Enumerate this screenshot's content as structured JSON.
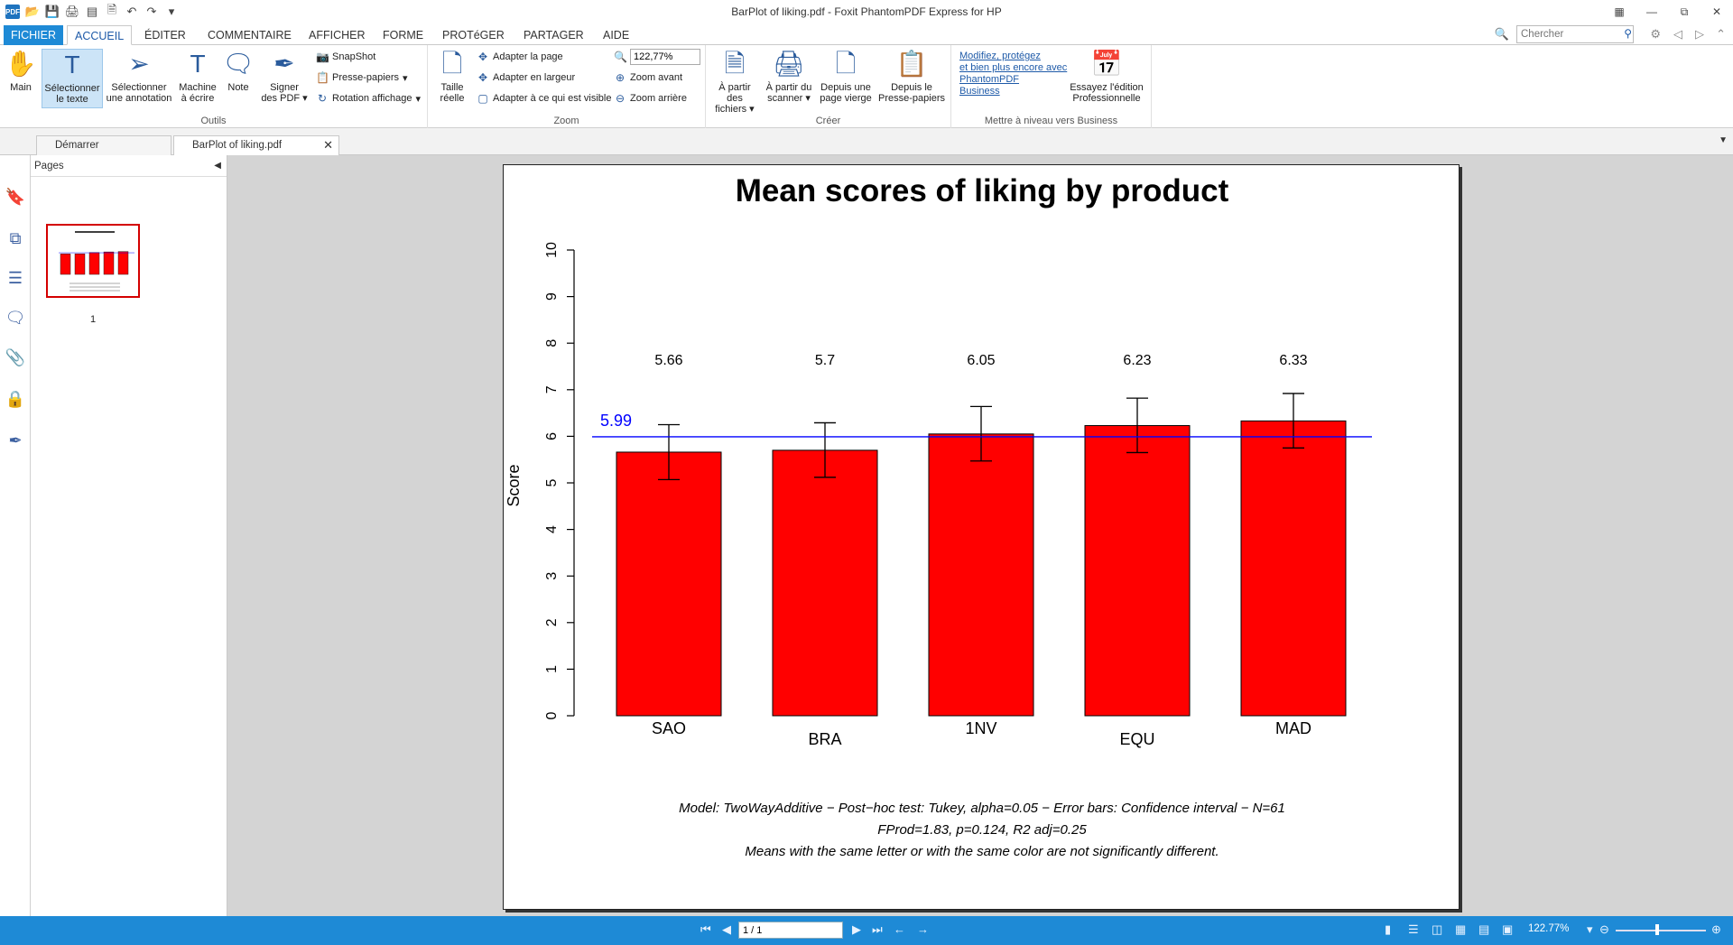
{
  "window": {
    "title": "BarPlot of liking.pdf - Foxit PhantomPDF Express for HP",
    "logo_text": "PDF"
  },
  "ribbon_tabs": [
    "FICHIER",
    "ACCUEIL",
    "ÉDITER",
    "COMMENTAIRE",
    "AFFICHER",
    "FORME",
    "PROTéGER",
    "PARTAGER",
    "AIDE"
  ],
  "search": {
    "placeholder": "Chercher"
  },
  "ribbon": {
    "tools": {
      "label": "Outils",
      "main": "Main",
      "select_text": [
        "Sélectionner",
        "le texte"
      ],
      "select_annotation": [
        "Sélectionner",
        "une annotation"
      ],
      "typewriter": [
        "Machine",
        "à écrire"
      ],
      "note": "Note",
      "sign": [
        "Signer",
        "des PDF"
      ],
      "snapshot": "SnapShot",
      "clipboard": "Presse-papiers",
      "rotate": "Rotation affichage"
    },
    "zoom": {
      "label": "Zoom",
      "actual_size": [
        "Taille",
        "réelle"
      ],
      "fit_page": "Adapter la page",
      "fit_width": "Adapter en largeur",
      "fit_visible": "Adapter à ce qui est visible",
      "zoom_value": "122,77%",
      "zoom_in": "Zoom avant",
      "zoom_out": "Zoom arrière"
    },
    "create": {
      "label": "Créer",
      "from_files": [
        "À partir des",
        "fichiers"
      ],
      "from_scanner": [
        "À partir du",
        "scanner"
      ],
      "blank_page": [
        "Depuis une",
        "page vierge"
      ],
      "from_clipboard": [
        "Depuis le",
        "Presse-papiers"
      ]
    },
    "upgrade": {
      "label": "Mettre à niveau vers Business",
      "promo_lines": [
        "Modifiez, protégez",
        "et bien plus encore avec",
        "PhantomPDF",
        "Business"
      ],
      "try_pro": [
        "Essayez l'édition",
        "Professionnelle"
      ]
    }
  },
  "doc_tabs": [
    "Démarrer",
    "BarPlot of liking.pdf"
  ],
  "pages_panel": {
    "title": "Pages",
    "page_number": "1"
  },
  "status": {
    "page": "1 / 1",
    "zoom": "122.77%"
  },
  "colors": {
    "accent": "#1e8ad6",
    "bar": "#ff0000",
    "mean_line": "#0000ff"
  },
  "chart_data": {
    "type": "bar",
    "title": "Mean scores of liking by product",
    "ylabel": "Score",
    "xlabel": "",
    "ylim": [
      0,
      10
    ],
    "yticks": [
      0,
      1,
      2,
      3,
      4,
      5,
      6,
      7,
      8,
      9,
      10
    ],
    "categories": [
      "SAO",
      "BRA",
      "1NV",
      "EQU",
      "MAD"
    ],
    "values": [
      5.66,
      5.7,
      6.05,
      6.23,
      6.33
    ],
    "value_labels": [
      "5.66",
      "5.7",
      "6.05",
      "6.23",
      "6.33"
    ],
    "error_low": [
      5.07,
      5.12,
      5.47,
      5.65,
      5.75
    ],
    "error_high": [
      6.25,
      6.29,
      6.64,
      6.82,
      6.92
    ],
    "reference_line": {
      "value": 5.99,
      "label": "5.99"
    },
    "grid": false,
    "footnote": [
      "Model: TwoWayAdditive − Post−hoc test: Tukey, alpha=0.05 − Error bars: Confidence interval − N=61",
      "FProd=1.83, p=0.124, R2 adj=0.25",
      "Means with the same letter or with the same color are not significantly different."
    ]
  }
}
